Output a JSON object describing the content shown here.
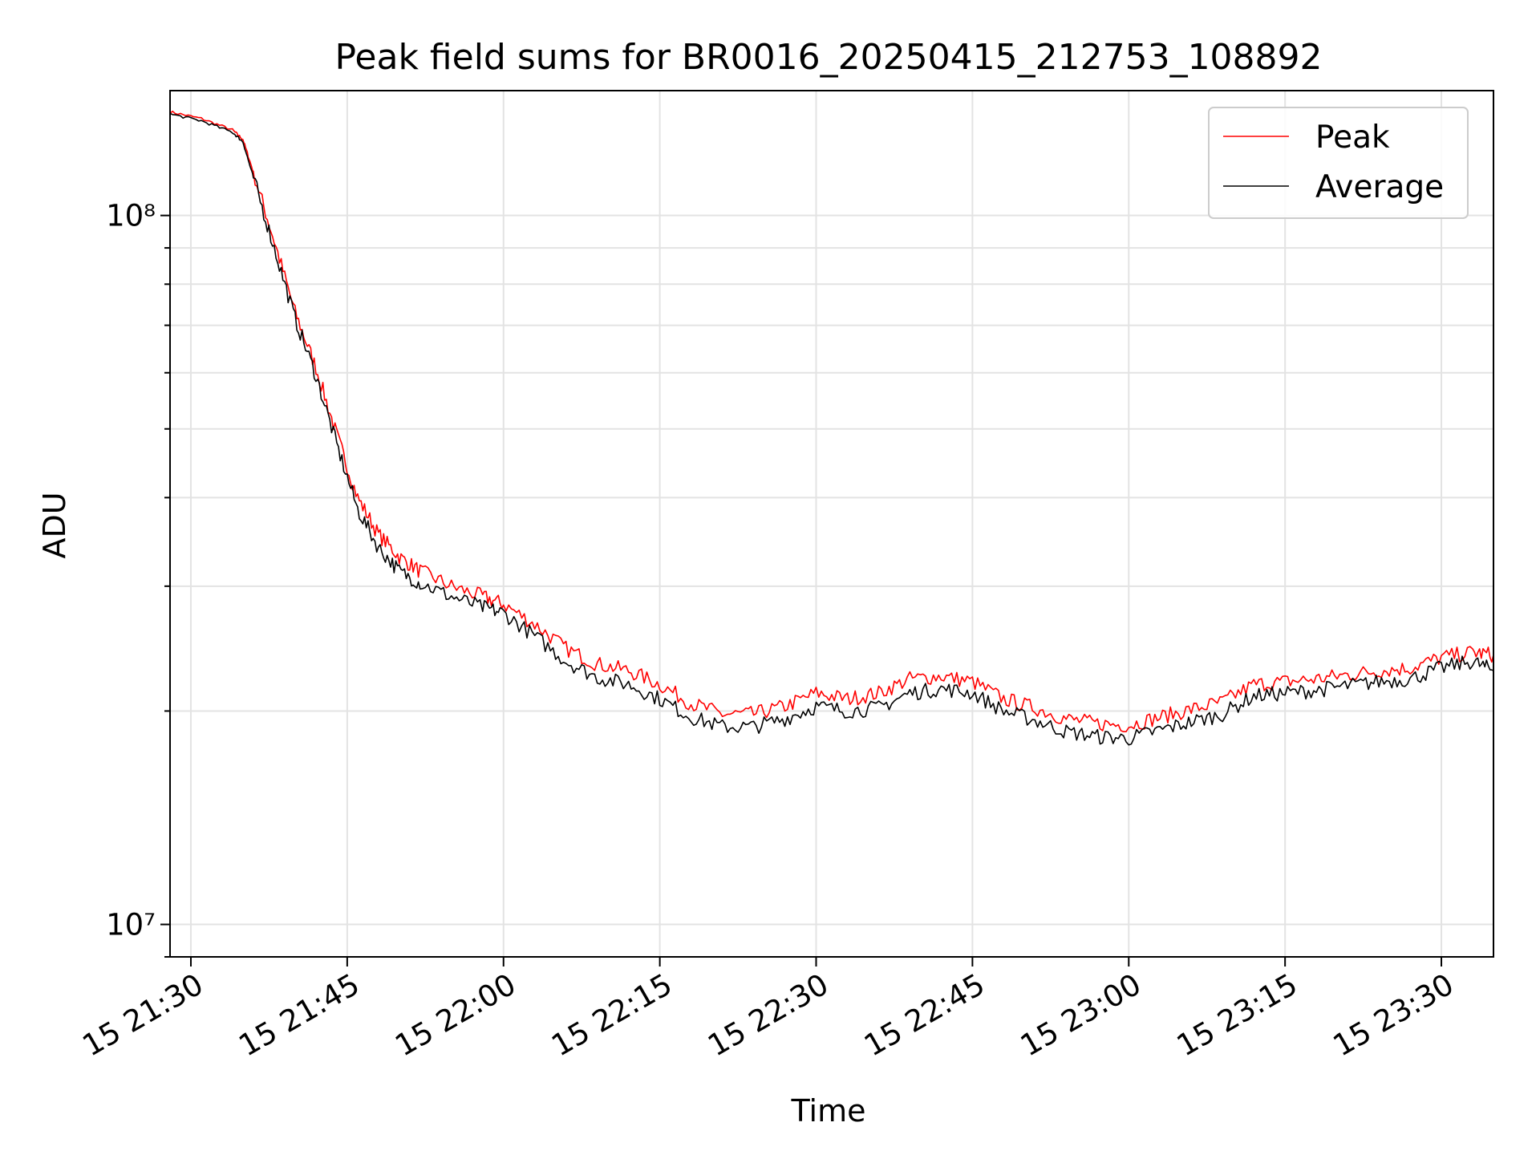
{
  "chart_data": {
    "type": "line",
    "title": "Peak field sums for BR0016_20250415_212753_108892",
    "xlabel": "Time",
    "ylabel": "ADU",
    "yscale": "log",
    "ylim": [
      9000000,
      150000000
    ],
    "xlim": [
      "2025-04-15 21:28",
      "2025-04-15 23:35"
    ],
    "x_ticks": [
      {
        "time": "2025-04-15 21:30",
        "label": "15 21:30"
      },
      {
        "time": "2025-04-15 21:45",
        "label": "15 21:45"
      },
      {
        "time": "2025-04-15 22:00",
        "label": "15 22:00"
      },
      {
        "time": "2025-04-15 22:15",
        "label": "15 22:15"
      },
      {
        "time": "2025-04-15 22:30",
        "label": "15 22:30"
      },
      {
        "time": "2025-04-15 22:45",
        "label": "15 22:45"
      },
      {
        "time": "2025-04-15 23:00",
        "label": "15 23:00"
      },
      {
        "time": "2025-04-15 23:15",
        "label": "15 23:15"
      },
      {
        "time": "2025-04-15 23:30",
        "label": "15 23:30"
      }
    ],
    "y_ticks": [
      {
        "value": 10000000,
        "label": "10⁷"
      },
      {
        "value": 100000000,
        "label": "10⁸"
      }
    ],
    "grid": true,
    "legend_position": "top-right",
    "series": [
      {
        "name": "Peak",
        "color": "#ff0000",
        "points": [
          [
            "2025-04-15 21:28",
            140000000
          ],
          [
            "2025-04-15 21:31",
            137000000
          ],
          [
            "2025-04-15 21:34",
            132000000
          ],
          [
            "2025-04-15 21:35",
            128000000
          ],
          [
            "2025-04-15 21:36",
            115000000
          ],
          [
            "2025-04-15 21:38",
            92000000
          ],
          [
            "2025-04-15 21:40",
            73000000
          ],
          [
            "2025-04-15 21:42",
            61000000
          ],
          [
            "2025-04-15 21:44",
            49000000
          ],
          [
            "2025-04-15 21:46",
            40000000
          ],
          [
            "2025-04-15 21:48",
            35500000
          ],
          [
            "2025-04-15 21:50",
            33000000
          ],
          [
            "2025-04-15 21:52",
            31500000
          ],
          [
            "2025-04-15 21:55",
            30000000
          ],
          [
            "2025-04-15 21:58",
            29000000
          ],
          [
            "2025-04-15 22:00",
            28300000
          ],
          [
            "2025-04-15 22:03",
            26500000
          ],
          [
            "2025-04-15 22:06",
            24500000
          ],
          [
            "2025-04-15 22:09",
            23300000
          ],
          [
            "2025-04-15 22:12",
            22800000
          ],
          [
            "2025-04-15 22:15",
            21800000
          ],
          [
            "2025-04-15 22:18",
            20500000
          ],
          [
            "2025-04-15 22:21",
            19800000
          ],
          [
            "2025-04-15 22:24",
            19800000
          ],
          [
            "2025-04-15 22:27",
            20300000
          ],
          [
            "2025-04-15 22:30",
            21200000
          ],
          [
            "2025-04-15 22:33",
            20800000
          ],
          [
            "2025-04-15 22:36",
            21200000
          ],
          [
            "2025-04-15 22:39",
            22200000
          ],
          [
            "2025-04-15 22:42",
            22400000
          ],
          [
            "2025-04-15 22:45",
            22000000
          ],
          [
            "2025-04-15 22:48",
            20800000
          ],
          [
            "2025-04-15 22:51",
            20200000
          ],
          [
            "2025-04-15 22:54",
            19500000
          ],
          [
            "2025-04-15 22:57",
            19200000
          ],
          [
            "2025-04-15 23:00",
            19100000
          ],
          [
            "2025-04-15 23:03",
            19600000
          ],
          [
            "2025-04-15 23:06",
            20100000
          ],
          [
            "2025-04-15 23:09",
            20600000
          ],
          [
            "2025-04-15 23:12",
            21800000
          ],
          [
            "2025-04-15 23:15",
            22000000
          ],
          [
            "2025-04-15 23:18",
            22200000
          ],
          [
            "2025-04-15 23:21",
            22500000
          ],
          [
            "2025-04-15 23:24",
            22800000
          ],
          [
            "2025-04-15 23:27",
            23000000
          ],
          [
            "2025-04-15 23:30",
            23800000
          ],
          [
            "2025-04-15 23:33",
            24200000
          ],
          [
            "2025-04-15 23:35",
            24000000
          ]
        ]
      },
      {
        "name": "Average",
        "color": "#000000",
        "points": [
          [
            "2025-04-15 21:28",
            139000000
          ],
          [
            "2025-04-15 21:31",
            136000000
          ],
          [
            "2025-04-15 21:34",
            131000000
          ],
          [
            "2025-04-15 21:35",
            127000000
          ],
          [
            "2025-04-15 21:36",
            113000000
          ],
          [
            "2025-04-15 21:38",
            90000000
          ],
          [
            "2025-04-15 21:40",
            71500000
          ],
          [
            "2025-04-15 21:42",
            59500000
          ],
          [
            "2025-04-15 21:44",
            47500000
          ],
          [
            "2025-04-15 21:46",
            38500000
          ],
          [
            "2025-04-15 21:48",
            34000000
          ],
          [
            "2025-04-15 21:50",
            31500000
          ],
          [
            "2025-04-15 21:52",
            30300000
          ],
          [
            "2025-04-15 21:55",
            29000000
          ],
          [
            "2025-04-15 21:58",
            28000000
          ],
          [
            "2025-04-15 22:00",
            27500000
          ],
          [
            "2025-04-15 22:03",
            25500000
          ],
          [
            "2025-04-15 22:06",
            23500000
          ],
          [
            "2025-04-15 22:09",
            22300000
          ],
          [
            "2025-04-15 22:12",
            21800000
          ],
          [
            "2025-04-15 22:15",
            20800000
          ],
          [
            "2025-04-15 22:18",
            19600000
          ],
          [
            "2025-04-15 22:21",
            19000000
          ],
          [
            "2025-04-15 22:24",
            19000000
          ],
          [
            "2025-04-15 22:27",
            19500000
          ],
          [
            "2025-04-15 22:30",
            20300000
          ],
          [
            "2025-04-15 22:33",
            20000000
          ],
          [
            "2025-04-15 22:36",
            20200000
          ],
          [
            "2025-04-15 22:39",
            21200000
          ],
          [
            "2025-04-15 22:42",
            21500000
          ],
          [
            "2025-04-15 22:45",
            21200000
          ],
          [
            "2025-04-15 22:48",
            20000000
          ],
          [
            "2025-04-15 22:51",
            19400000
          ],
          [
            "2025-04-15 22:54",
            18700000
          ],
          [
            "2025-04-15 22:57",
            18400000
          ],
          [
            "2025-04-15 23:00",
            18300000
          ],
          [
            "2025-04-15 23:03",
            18800000
          ],
          [
            "2025-04-15 23:06",
            19300000
          ],
          [
            "2025-04-15 23:09",
            19800000
          ],
          [
            "2025-04-15 23:12",
            21000000
          ],
          [
            "2025-04-15 23:15",
            21200000
          ],
          [
            "2025-04-15 23:18",
            21400000
          ],
          [
            "2025-04-15 23:21",
            21700000
          ],
          [
            "2025-04-15 23:24",
            22000000
          ],
          [
            "2025-04-15 23:27",
            22200000
          ],
          [
            "2025-04-15 23:30",
            23000000
          ],
          [
            "2025-04-15 23:33",
            23500000
          ],
          [
            "2025-04-15 23:35",
            22800000
          ]
        ]
      }
    ]
  }
}
